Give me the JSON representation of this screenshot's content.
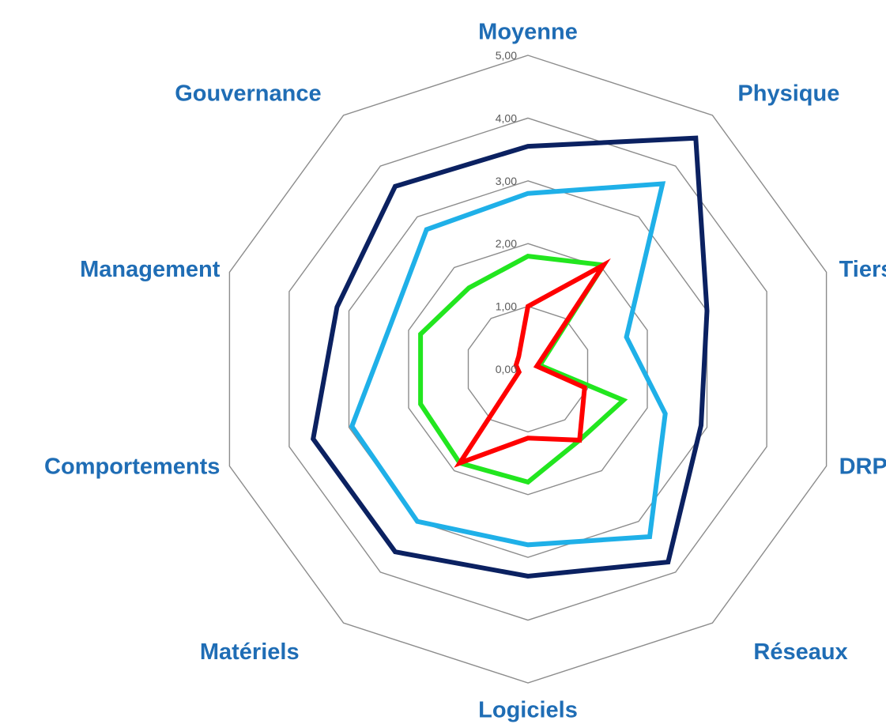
{
  "chart_data": {
    "type": "radar",
    "categories": [
      "Moyenne",
      "Physique",
      "Tiers",
      "DRP",
      "Réseaux",
      "Logiciels",
      "Matériels",
      "Comportements",
      "Management",
      "Gouvernance"
    ],
    "tick_labels": [
      "0,00",
      "1,00",
      "2,00",
      "3,00",
      "4,00",
      "5,00"
    ],
    "rlim": [
      0,
      5
    ],
    "grid": true,
    "legend": "none",
    "series": [
      {
        "color": "#0b2161",
        "values": [
          3.55,
          4.55,
          3.0,
          2.9,
          3.8,
          3.3,
          3.6,
          3.6,
          3.2,
          3.6
        ]
      },
      {
        "color": "#1fb0e8",
        "values": [
          2.8,
          3.65,
          1.65,
          2.3,
          3.3,
          2.8,
          3.0,
          2.95,
          2.3,
          2.75
        ]
      },
      {
        "color": "#22e61f",
        "values": [
          1.8,
          2.05,
          0.2,
          1.6,
          1.4,
          1.8,
          1.85,
          1.8,
          1.8,
          1.6
        ]
      },
      {
        "color": "#ff0000",
        "values": [
          1.0,
          2.05,
          0.15,
          0.95,
          1.4,
          1.1,
          1.85,
          0.15,
          0.2,
          0.25
        ]
      }
    ],
    "label_color": "#1f6db5",
    "grid_color": "#8c8c8c"
  }
}
